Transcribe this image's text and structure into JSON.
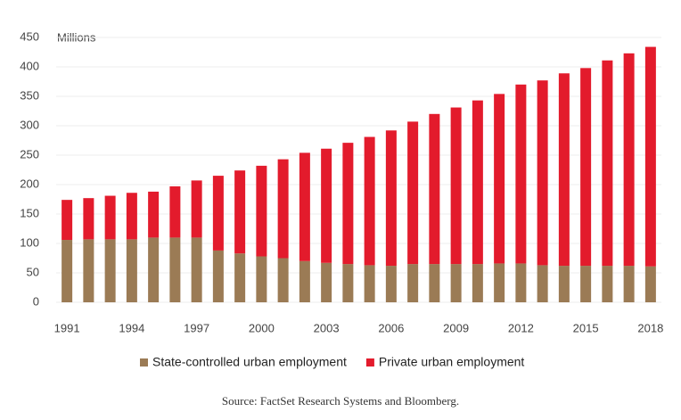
{
  "chart_data": {
    "type": "stacked_bar",
    "y_axis_label": "Millions",
    "source": "Source: FactSet Research Systems and Bloomberg.",
    "categories": [
      "1991",
      null,
      null,
      "1994",
      null,
      null,
      "1997",
      null,
      null,
      "2000",
      null,
      null,
      "2003",
      null,
      null,
      "2006",
      null,
      null,
      "2009",
      null,
      null,
      "2012",
      null,
      null,
      "2015",
      null,
      null,
      "2018"
    ],
    "series": [
      {
        "name": "State-controlled urban employment",
        "color": "#9b7b55",
        "values": [
          106,
          107,
          107,
          107,
          110,
          110,
          110,
          88,
          83,
          78,
          75,
          70,
          67,
          65,
          63,
          62,
          65,
          65,
          65,
          65,
          66,
          66,
          63,
          62,
          62,
          62,
          62,
          61
        ]
      },
      {
        "name": "Private urban employment",
        "color": "#e31b2c",
        "values": [
          68,
          70,
          74,
          79,
          78,
          87,
          97,
          127,
          141,
          154,
          168,
          184,
          194,
          206,
          218,
          230,
          242,
          255,
          266,
          278,
          288,
          304,
          314,
          327,
          336,
          349,
          361,
          373
        ]
      }
    ],
    "ylim": [
      0,
      450
    ],
    "yticks": [
      0,
      50,
      100,
      150,
      200,
      250,
      300,
      350,
      400,
      450
    ],
    "grid": true
  }
}
